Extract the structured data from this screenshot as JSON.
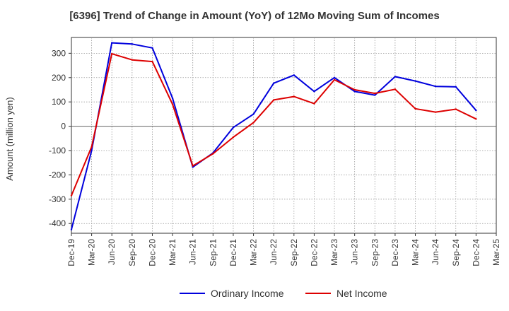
{
  "chart_data": {
    "type": "line",
    "title": "[6396]  Trend of Change in Amount (YoY) of 12Mo Moving Sum of Incomes",
    "xlabel": "",
    "ylabel": "Amount (million yen)",
    "x": [
      "Dec-19",
      "Mar-20",
      "Jun-20",
      "Sep-20",
      "Dec-20",
      "Mar-21",
      "Jun-21",
      "Sep-21",
      "Dec-21",
      "Mar-22",
      "Jun-22",
      "Sep-22",
      "Dec-22",
      "Mar-23",
      "Jun-23",
      "Sep-23",
      "Dec-23",
      "Mar-24",
      "Jun-24",
      "Sep-24",
      "Dec-24",
      "Mar-25"
    ],
    "ylim": [
      -440,
      365
    ],
    "yticks": [
      300,
      200,
      100,
      0,
      -100,
      -200,
      -300,
      -400
    ],
    "grid": true,
    "legend_position": "bottom",
    "series": [
      {
        "name": "Ordinary Income",
        "color": "#0000dd",
        "values": [
          -425,
          -100,
          343,
          338,
          322,
          115,
          -168,
          -110,
          -5,
          50,
          177,
          210,
          143,
          200,
          143,
          128,
          204,
          186,
          164,
          162,
          65,
          null
        ]
      },
      {
        "name": "Net Income",
        "color": "#dd0000",
        "values": [
          -285,
          -85,
          298,
          273,
          266,
          90,
          -163,
          -113,
          -45,
          15,
          108,
          122,
          93,
          191,
          150,
          135,
          152,
          72,
          58,
          70,
          30,
          null
        ]
      }
    ],
    "zero_line_color": "#666666"
  }
}
